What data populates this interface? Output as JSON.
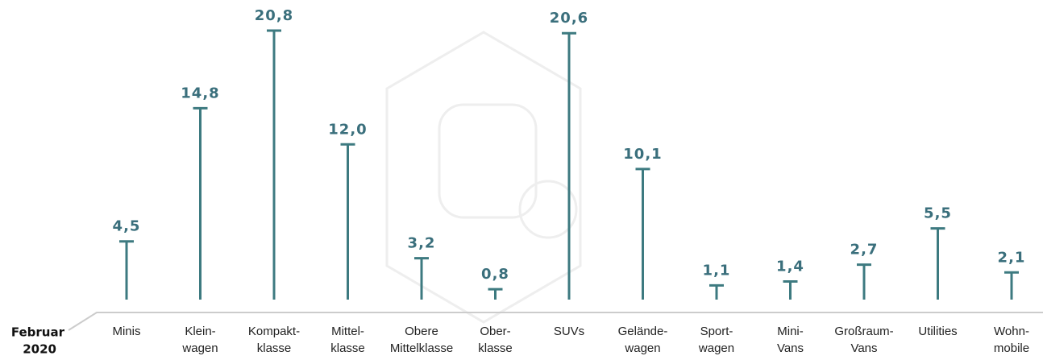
{
  "chart_data": {
    "type": "lollipop",
    "x_label": [
      "Februar",
      "2020"
    ],
    "categories": [
      [
        "Minis"
      ],
      [
        "Klein-",
        "wagen"
      ],
      [
        "Kompakt-",
        "klasse"
      ],
      [
        "Mittel-",
        "klasse"
      ],
      [
        "Obere",
        "Mittelklasse"
      ],
      [
        "Ober-",
        "klasse"
      ],
      [
        "SUVs"
      ],
      [
        "Gelände-",
        "wagen"
      ],
      [
        "Sport-",
        "wagen"
      ],
      [
        "Mini-",
        "Vans"
      ],
      [
        "Großraum-",
        "Vans"
      ],
      [
        "Utilities"
      ],
      [
        "Wohn-",
        "mobile"
      ]
    ],
    "values": [
      4.5,
      14.8,
      20.8,
      12.0,
      3.2,
      0.8,
      20.6,
      10.1,
      1.1,
      1.4,
      2.7,
      5.5,
      2.1
    ],
    "value_labels": [
      "4,5",
      "14,8",
      "20,8",
      "12,0",
      "3,2",
      "0,8",
      "20,6",
      "10,1",
      "1,1",
      "1,4",
      "2,7",
      "5,5",
      "2,1"
    ],
    "color": "#3d7a80"
  }
}
